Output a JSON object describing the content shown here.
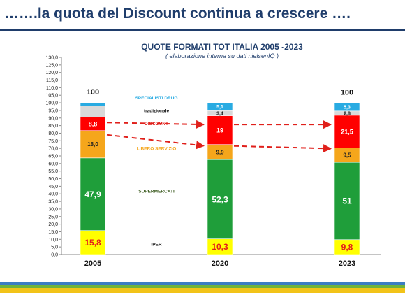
{
  "slide": {
    "title": "…….la quota del Discount continua a crescere  …."
  },
  "colors": {
    "title": "#1f3d6b",
    "iper": "#ffff00",
    "supermercati": "#1f9e3a",
    "libero_servizio": "#f5a61b",
    "discount": "#ff0000",
    "tradizionale": "#d9d9d9",
    "specialisti_drug": "#29abe2",
    "arrow": "#e0201b"
  },
  "chart_data": {
    "type": "bar",
    "stacked": true,
    "title": "QUOTE FORMATI TOT ITALIA  2005 -2023",
    "subtitle": "( elaborazione interna su dati nielsenIQ )",
    "categories": [
      "2005",
      "2020",
      "2023"
    ],
    "totals": [
      "100",
      "",
      "100"
    ],
    "ylim": [
      0,
      130
    ],
    "ytick_step": 5,
    "series": [
      {
        "name": "IPER",
        "values": [
          15.8,
          10.3,
          9.8
        ],
        "labels": [
          "15,8",
          "10,3",
          "9,8"
        ]
      },
      {
        "name": "SUPERMERCATI",
        "values": [
          47.9,
          52.3,
          51
        ],
        "labels": [
          "47,9",
          "52,3",
          "51"
        ]
      },
      {
        "name": "LIBERO SERVIZIO",
        "values": [
          18.0,
          9.9,
          9.5
        ],
        "labels": [
          "18,0",
          "9,9",
          "9,5"
        ]
      },
      {
        "name": "DISCOUNT",
        "values": [
          8.8,
          19,
          21.5
        ],
        "labels": [
          "8,8",
          "19",
          "21,5"
        ]
      },
      {
        "name": "tradizionale",
        "values": [
          7.5,
          3.4,
          2.8
        ],
        "labels": [
          "",
          "3,4",
          "2,8"
        ]
      },
      {
        "name": "SPECIALISTI DRUG",
        "values": [
          2.0,
          5.1,
          5.3
        ],
        "labels": [
          "",
          "5,1",
          "5,3"
        ]
      }
    ]
  }
}
